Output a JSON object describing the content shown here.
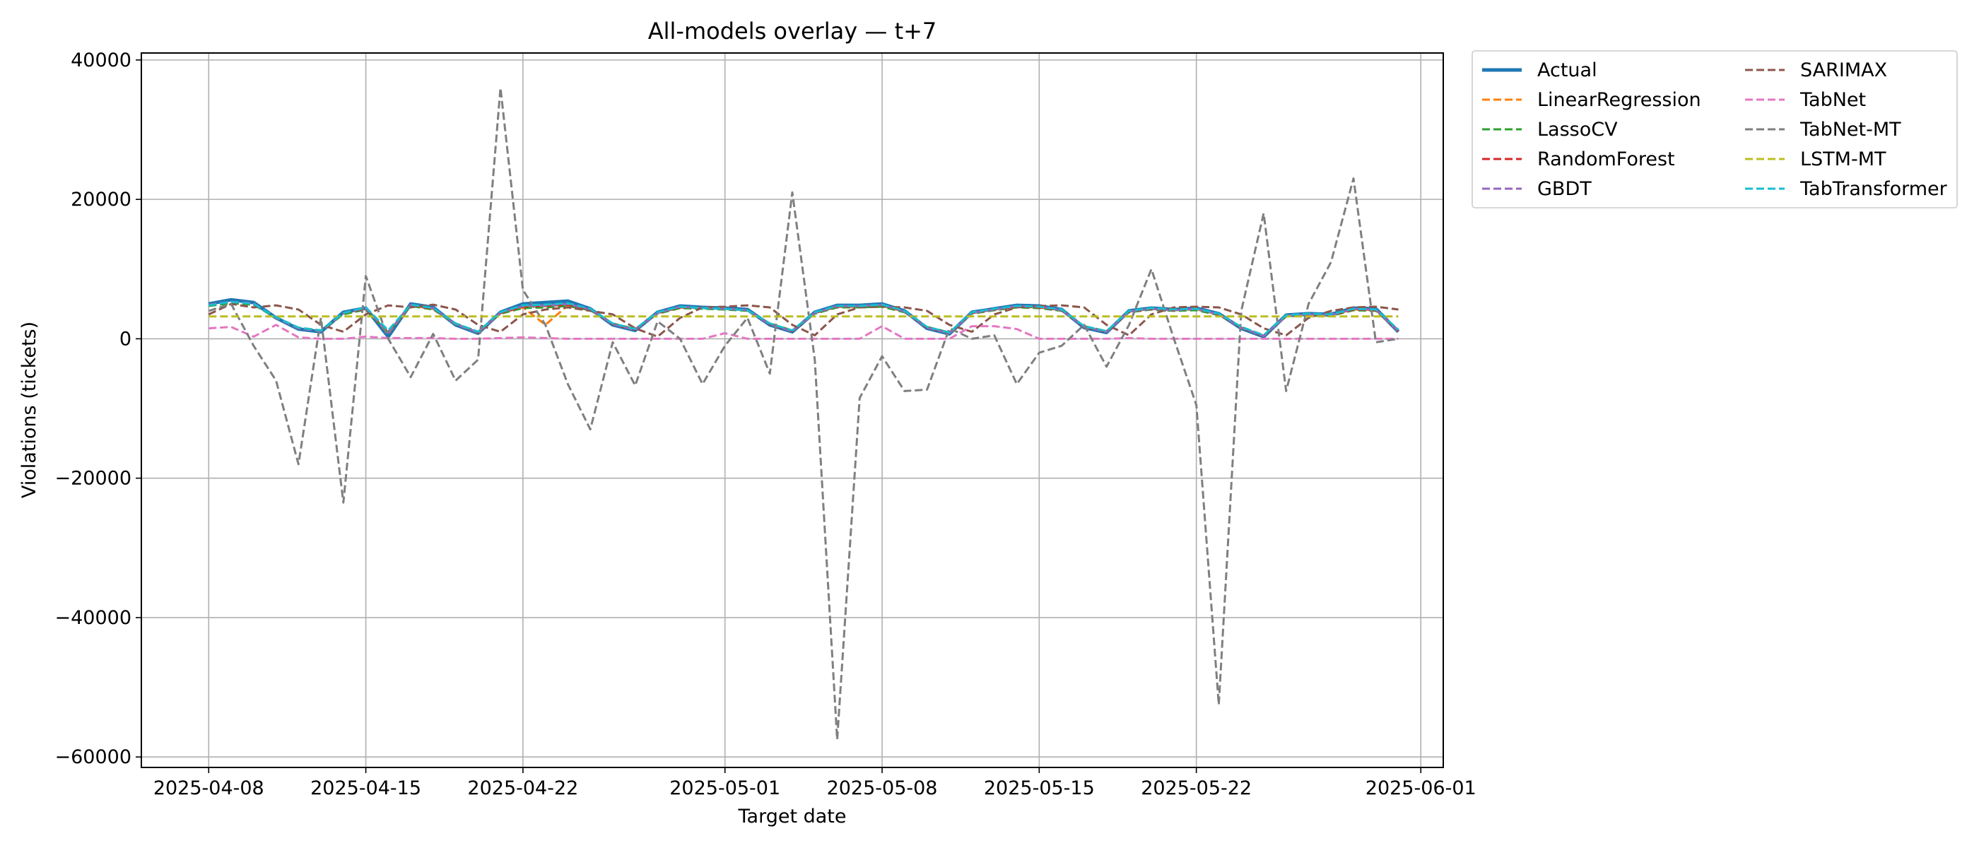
{
  "chart_data": {
    "type": "line",
    "title": "All-models overlay — t+7",
    "xlabel": "Target date",
    "ylabel": "Violations (tickets)",
    "xlim": [
      "2025-04-05",
      "2025-06-02"
    ],
    "ylim": [
      -61500,
      41000
    ],
    "x_ticks": [
      "2025-04-08",
      "2025-04-15",
      "2025-04-22",
      "2025-05-01",
      "2025-05-08",
      "2025-05-15",
      "2025-05-22",
      "2025-06-01"
    ],
    "y_ticks": [
      40000,
      20000,
      0,
      -20000,
      -40000,
      -60000
    ],
    "y_tick_labels": [
      "40000",
      "20000",
      "0",
      "−20000",
      "−40000",
      "−60000"
    ],
    "grid": true,
    "legend_position": "outside-top-right",
    "legend_columns": 2,
    "x": [
      "2025-04-08",
      "2025-04-09",
      "2025-04-10",
      "2025-04-11",
      "2025-04-12",
      "2025-04-13",
      "2025-04-14",
      "2025-04-15",
      "2025-04-16",
      "2025-04-17",
      "2025-04-18",
      "2025-04-19",
      "2025-04-20",
      "2025-04-21",
      "2025-04-22",
      "2025-04-23",
      "2025-04-24",
      "2025-04-25",
      "2025-04-26",
      "2025-04-27",
      "2025-04-28",
      "2025-04-29",
      "2025-04-30",
      "2025-05-01",
      "2025-05-02",
      "2025-05-03",
      "2025-05-04",
      "2025-05-05",
      "2025-05-06",
      "2025-05-07",
      "2025-05-08",
      "2025-05-09",
      "2025-05-10",
      "2025-05-11",
      "2025-05-12",
      "2025-05-13",
      "2025-05-14",
      "2025-05-15",
      "2025-05-16",
      "2025-05-17",
      "2025-05-18",
      "2025-05-19",
      "2025-05-20",
      "2025-05-21",
      "2025-05-22",
      "2025-05-23",
      "2025-05-24",
      "2025-05-25",
      "2025-05-26",
      "2025-05-27",
      "2025-05-28",
      "2025-05-29",
      "2025-05-30",
      "2025-05-31"
    ],
    "series": [
      {
        "name": "Actual",
        "color": "#1f77b4",
        "style": "solid",
        "width": 5,
        "values": [
          5000,
          5600,
          5200,
          3000,
          1400,
          1000,
          3800,
          4400,
          300,
          5000,
          4500,
          2000,
          800,
          3800,
          5000,
          5200,
          5400,
          4300,
          2000,
          1200,
          3800,
          4700,
          4500,
          4400,
          4200,
          2000,
          1000,
          3800,
          4800,
          4800,
          5000,
          4000,
          1500,
          700,
          3800,
          4300,
          4800,
          4700,
          4200,
          1600,
          900,
          4000,
          4400,
          4200,
          4400,
          3600,
          1500,
          300,
          3400,
          3600,
          3500,
          4400,
          4300,
          1000
        ]
      },
      {
        "name": "LinearRegression",
        "color": "#ff7f0e",
        "style": "dashed",
        "values": [
          4800,
          5200,
          5000,
          3000,
          1500,
          1100,
          3600,
          4300,
          800,
          4800,
          4300,
          2100,
          900,
          3700,
          4500,
          2000,
          4800,
          4200,
          2100,
          1300,
          3700,
          4500,
          4400,
          4300,
          4100,
          2100,
          1100,
          3700,
          4600,
          4600,
          4700,
          3900,
          1600,
          800,
          3700,
          4200,
          4600,
          4500,
          4100,
          1700,
          1000,
          3900,
          4300,
          4100,
          4200,
          3500,
          1600,
          400,
          3300,
          3500,
          3400,
          4200,
          4100,
          1100
        ]
      },
      {
        "name": "LassoCV",
        "color": "#2ca02c",
        "style": "dashed",
        "values": [
          4700,
          5100,
          4900,
          3000,
          1600,
          1200,
          3500,
          4200,
          900,
          4700,
          4200,
          2200,
          1000,
          3600,
          4400,
          4500,
          4700,
          4100,
          2200,
          1400,
          3600,
          4400,
          4300,
          4200,
          4000,
          2200,
          1200,
          3600,
          4500,
          4500,
          4600,
          3800,
          1700,
          900,
          3600,
          4100,
          4500,
          4400,
          4000,
          1800,
          1100,
          3800,
          4200,
          4000,
          4100,
          3400,
          1700,
          500,
          3200,
          3400,
          3300,
          4100,
          4000,
          1200
        ]
      },
      {
        "name": "RandomForest",
        "color": "#d62728",
        "style": "dashed",
        "values": [
          4900,
          5300,
          5000,
          3100,
          1500,
          1100,
          3700,
          4300,
          1000,
          4800,
          4300,
          2200,
          900,
          3700,
          4600,
          4700,
          4900,
          4200,
          2100,
          1300,
          3700,
          4500,
          4400,
          4300,
          4100,
          2100,
          1100,
          3700,
          4600,
          4600,
          4800,
          3900,
          1600,
          800,
          3700,
          4200,
          4600,
          4500,
          4100,
          1700,
          1000,
          3900,
          4300,
          4100,
          4300,
          3500,
          1600,
          400,
          3300,
          3500,
          3400,
          4200,
          4100,
          1100
        ]
      },
      {
        "name": "GBDT",
        "color": "#9467bd",
        "style": "dashed",
        "values": [
          4900,
          5300,
          5100,
          3000,
          1500,
          1100,
          3700,
          4400,
          900,
          4900,
          4400,
          2100,
          900,
          3800,
          4700,
          4800,
          5000,
          4200,
          2100,
          1300,
          3700,
          4600,
          4400,
          4300,
          4100,
          2100,
          1100,
          3700,
          4700,
          4700,
          4900,
          3900,
          1600,
          800,
          3700,
          4200,
          4700,
          4600,
          4100,
          1700,
          1000,
          3900,
          4300,
          4100,
          4300,
          3500,
          1600,
          400,
          3300,
          3500,
          3400,
          4300,
          4200,
          1100
        ]
      },
      {
        "name": "SARIMAX",
        "color": "#8c564b",
        "style": "dashed",
        "values": [
          3500,
          5000,
          4500,
          4800,
          4200,
          2000,
          1000,
          3500,
          4800,
          4500,
          4900,
          4200,
          2000,
          1000,
          3500,
          4200,
          4500,
          4000,
          3500,
          1500,
          300,
          3000,
          4500,
          4600,
          4800,
          4500,
          2000,
          500,
          3500,
          4500,
          4600,
          4500,
          4000,
          2000,
          1000,
          3500,
          4500,
          4700,
          4800,
          4500,
          2000,
          500,
          3500,
          4500,
          4600,
          4500,
          3500,
          1500,
          500,
          3000,
          4000,
          4500,
          4600,
          4200
        ]
      },
      {
        "name": "TabNet",
        "color": "#e377c2",
        "style": "dashed",
        "values": [
          1500,
          1700,
          300,
          2000,
          200,
          0,
          0,
          300,
          100,
          100,
          100,
          0,
          0,
          100,
          200,
          100,
          0,
          0,
          0,
          0,
          0,
          0,
          0,
          800,
          0,
          0,
          0,
          0,
          0,
          0,
          1800,
          0,
          0,
          0,
          1800,
          1800,
          1400,
          0,
          0,
          0,
          0,
          100,
          0,
          0,
          0,
          0,
          0,
          0,
          0,
          0,
          0,
          0,
          0,
          0
        ]
      },
      {
        "name": "TabNet-MT",
        "color": "#7f7f7f",
        "style": "dashed",
        "values": [
          4000,
          5000,
          -1000,
          -6000,
          -18000,
          3000,
          -23500,
          9000,
          0,
          -5500,
          700,
          -6000,
          -3000,
          36000,
          7000,
          2000,
          -6500,
          -13000,
          -500,
          -6700,
          2500,
          0,
          -6500,
          -1000,
          3000,
          -5000,
          21000,
          -3000,
          -57500,
          -8500,
          -2500,
          -7500,
          -7300,
          1500,
          0,
          500,
          -6500,
          -2000,
          -1000,
          2000,
          -4000,
          2000,
          10000,
          0,
          -9500,
          -52500,
          4000,
          18000,
          -7500,
          5000,
          11000,
          23000,
          -500,
          0
        ]
      },
      {
        "name": "LSTM-MT",
        "color": "#bcbd22",
        "style": "dashed",
        "values": [
          3200,
          3200,
          3200,
          3200,
          3200,
          3200,
          3200,
          3200,
          3200,
          3200,
          3200,
          3200,
          3200,
          3200,
          3200,
          3200,
          3200,
          3200,
          3200,
          3200,
          3200,
          3200,
          3200,
          3200,
          3200,
          3200,
          3200,
          3200,
          3200,
          3200,
          3200,
          3200,
          3200,
          3200,
          3200,
          3200,
          3200,
          3200,
          3200,
          3200,
          3200,
          3200,
          3200,
          3200,
          3200,
          3200,
          3200,
          3200,
          3200,
          3200,
          3200,
          3200,
          3200,
          3200
        ]
      },
      {
        "name": "TabTransformer",
        "color": "#17becf",
        "style": "dashed",
        "values": [
          4800,
          5300,
          5000,
          3100,
          1600,
          1200,
          3700,
          4500,
          1200,
          4900,
          4400,
          2200,
          1000,
          3800,
          4800,
          4900,
          5100,
          4300,
          2200,
          1400,
          3800,
          4600,
          4400,
          4300,
          4100,
          2200,
          1200,
          3800,
          4700,
          4700,
          4900,
          4000,
          1700,
          900,
          3800,
          4300,
          4700,
          4600,
          4200,
          1800,
          1100,
          4000,
          4400,
          4200,
          4300,
          3600,
          1700,
          500,
          3400,
          3600,
          3500,
          4300,
          4200,
          1300
        ]
      }
    ]
  }
}
